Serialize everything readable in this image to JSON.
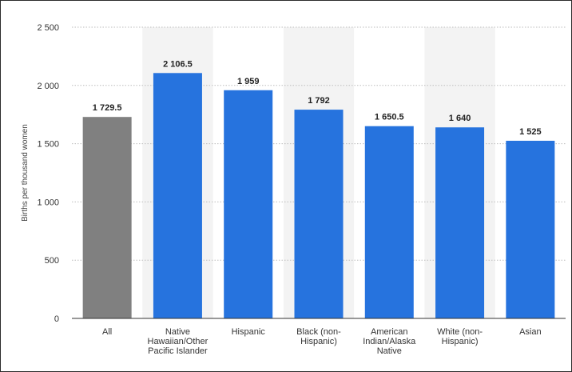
{
  "chart_data": {
    "type": "bar",
    "title": "",
    "xlabel": "",
    "ylabel": "Births per thousand women",
    "ylim": [
      0,
      2500
    ],
    "yticks": [
      0,
      500,
      1000,
      1500,
      2000,
      2500
    ],
    "ytick_labels": [
      "0",
      "500",
      "1 000",
      "1 500",
      "2 000",
      "2 500"
    ],
    "grid": true,
    "categories": [
      [
        "All"
      ],
      [
        "Native",
        "Hawaiian/Other",
        "Pacific Islander"
      ],
      [
        "Hispanic"
      ],
      [
        "Black (non-",
        "Hispanic)"
      ],
      [
        "American",
        "Indian/Alaska",
        "Native"
      ],
      [
        "White (non-",
        "Hispanic)"
      ],
      [
        "Asian"
      ]
    ],
    "values": [
      1729.5,
      2106.5,
      1959,
      1792,
      1650.5,
      1640,
      1525
    ],
    "value_labels": [
      "1 729.5",
      "2 106.5",
      "1 959",
      "1 792",
      "1 650.5",
      "1 640",
      "1 525"
    ],
    "colors": {
      "highlight_bar": "#808080",
      "bar": "#2673de",
      "alt_band": "#f3f3f3",
      "grid": "#bdbdbd",
      "axis": "#333333"
    }
  }
}
